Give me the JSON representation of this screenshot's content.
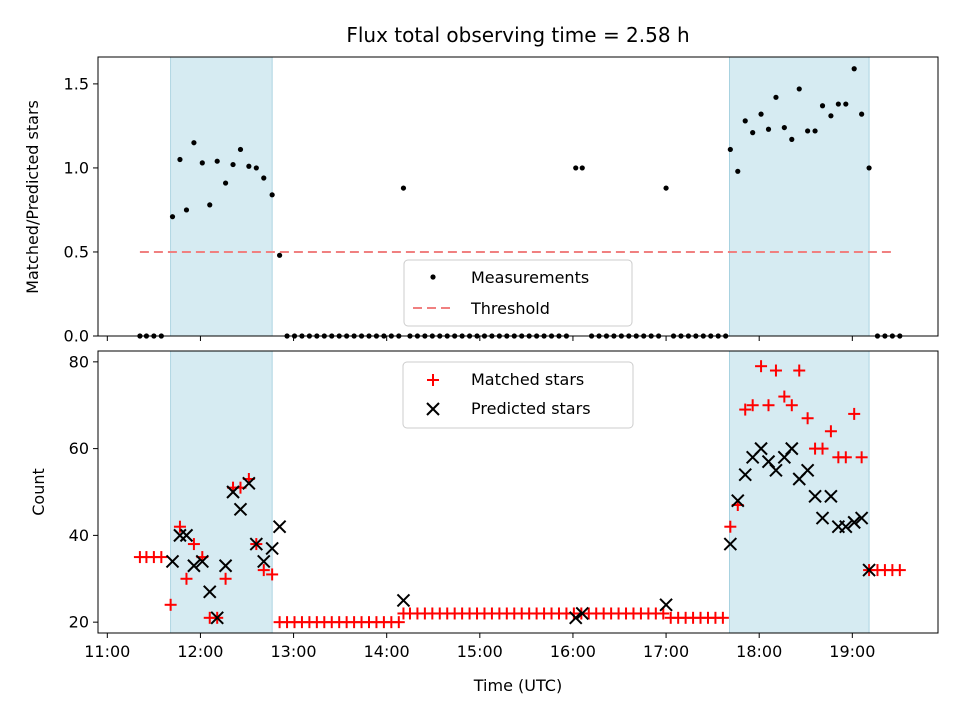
{
  "chart_data": [
    {
      "type": "scatter",
      "title": "Flux total observing time = 2.58 h",
      "ylabel": "Matched/Predicted stars",
      "xlabel": "",
      "ylim": [
        0,
        1.66
      ],
      "xlim": [
        10.9,
        19.92
      ],
      "yticks": [
        0.0,
        0.5,
        1.0,
        1.5
      ],
      "ytick_labels": [
        "0.0",
        "0.5",
        "1.0",
        "1.5"
      ],
      "shaded_intervals": [
        [
          11.68,
          12.77
        ],
        [
          17.68,
          19.18
        ]
      ],
      "threshold": {
        "value": 0.5,
        "x_range": [
          11.35,
          19.45
        ],
        "color": "#f08080"
      },
      "legend": {
        "position": "lower-center",
        "entries": [
          "Measurements",
          "Threshold"
        ]
      },
      "series": [
        {
          "name": "Measurements",
          "color": "#000000",
          "points": [
            [
              11.35,
              0
            ],
            [
              11.42,
              0
            ],
            [
              11.5,
              0
            ],
            [
              11.58,
              0
            ],
            [
              11.7,
              0.71
            ],
            [
              11.78,
              1.05
            ],
            [
              11.85,
              0.75
            ],
            [
              11.93,
              1.15
            ],
            [
              12.02,
              1.03
            ],
            [
              12.1,
              0.78
            ],
            [
              12.18,
              1.04
            ],
            [
              12.27,
              0.91
            ],
            [
              12.35,
              1.02
            ],
            [
              12.43,
              1.11
            ],
            [
              12.52,
              1.01
            ],
            [
              12.6,
              1.0
            ],
            [
              12.68,
              0.94
            ],
            [
              12.77,
              0.84
            ],
            [
              12.85,
              0.48
            ],
            [
              12.93,
              0
            ],
            [
              13.01,
              0
            ],
            [
              13.09,
              0
            ],
            [
              13.17,
              0
            ],
            [
              13.25,
              0
            ],
            [
              13.33,
              0
            ],
            [
              13.41,
              0
            ],
            [
              13.49,
              0
            ],
            [
              13.57,
              0
            ],
            [
              13.65,
              0
            ],
            [
              13.73,
              0
            ],
            [
              13.81,
              0
            ],
            [
              13.89,
              0
            ],
            [
              13.97,
              0
            ],
            [
              14.05,
              0
            ],
            [
              14.13,
              0
            ],
            [
              14.18,
              0.88
            ],
            [
              14.25,
              0
            ],
            [
              14.33,
              0
            ],
            [
              14.41,
              0
            ],
            [
              14.49,
              0
            ],
            [
              14.57,
              0
            ],
            [
              14.65,
              0
            ],
            [
              14.73,
              0
            ],
            [
              14.81,
              0
            ],
            [
              14.89,
              0
            ],
            [
              14.97,
              0
            ],
            [
              15.05,
              0
            ],
            [
              15.13,
              0
            ],
            [
              15.21,
              0
            ],
            [
              15.29,
              0
            ],
            [
              15.37,
              0
            ],
            [
              15.45,
              0
            ],
            [
              15.53,
              0
            ],
            [
              15.61,
              0
            ],
            [
              15.69,
              0
            ],
            [
              15.77,
              0
            ],
            [
              15.85,
              0
            ],
            [
              15.93,
              0
            ],
            [
              16.03,
              1.0
            ],
            [
              16.1,
              1.0
            ],
            [
              16.2,
              0
            ],
            [
              16.28,
              0
            ],
            [
              16.36,
              0
            ],
            [
              16.44,
              0
            ],
            [
              16.52,
              0
            ],
            [
              16.6,
              0
            ],
            [
              16.68,
              0
            ],
            [
              16.76,
              0
            ],
            [
              16.84,
              0
            ],
            [
              16.92,
              0
            ],
            [
              17.0,
              0.88
            ],
            [
              17.08,
              0
            ],
            [
              17.16,
              0
            ],
            [
              17.24,
              0
            ],
            [
              17.32,
              0
            ],
            [
              17.4,
              0
            ],
            [
              17.48,
              0
            ],
            [
              17.56,
              0
            ],
            [
              17.64,
              0
            ],
            [
              17.69,
              1.11
            ],
            [
              17.77,
              0.98
            ],
            [
              17.85,
              1.28
            ],
            [
              17.93,
              1.21
            ],
            [
              18.02,
              1.32
            ],
            [
              18.1,
              1.23
            ],
            [
              18.18,
              1.42
            ],
            [
              18.27,
              1.24
            ],
            [
              18.35,
              1.17
            ],
            [
              18.43,
              1.47
            ],
            [
              18.52,
              1.22
            ],
            [
              18.6,
              1.22
            ],
            [
              18.68,
              1.37
            ],
            [
              18.77,
              1.31
            ],
            [
              18.85,
              1.38
            ],
            [
              18.93,
              1.38
            ],
            [
              19.02,
              1.59
            ],
            [
              19.1,
              1.32
            ],
            [
              19.18,
              1.0
            ],
            [
              19.27,
              0
            ],
            [
              19.35,
              0
            ],
            [
              19.43,
              0
            ],
            [
              19.51,
              0
            ]
          ]
        }
      ]
    },
    {
      "type": "scatter",
      "title": "",
      "xlabel": "Time (UTC)",
      "ylabel": "Count",
      "ylim": [
        17.5,
        82.5
      ],
      "xlim": [
        10.9,
        19.92
      ],
      "yticks": [
        20,
        40,
        60,
        80
      ],
      "ytick_labels": [
        "20",
        "40",
        "60",
        "80"
      ],
      "xticks": [
        11,
        12,
        13,
        14,
        15,
        16,
        17,
        18,
        19
      ],
      "xtick_labels": [
        "11:00",
        "12:00",
        "13:00",
        "14:00",
        "15:00",
        "16:00",
        "17:00",
        "18:00",
        "19:00"
      ],
      "shaded_intervals": [
        [
          11.68,
          12.77
        ],
        [
          17.68,
          19.18
        ]
      ],
      "legend": {
        "position": "upper-center",
        "entries": [
          "Matched stars",
          "Predicted stars"
        ]
      },
      "series": [
        {
          "name": "Matched stars",
          "color": "#ff0000",
          "points": [
            [
              11.35,
              35
            ],
            [
              11.42,
              35
            ],
            [
              11.5,
              35
            ],
            [
              11.58,
              35
            ],
            [
              11.68,
              24
            ],
            [
              11.78,
              42
            ],
            [
              11.85,
              30
            ],
            [
              11.93,
              38
            ],
            [
              12.02,
              35
            ],
            [
              12.1,
              21
            ],
            [
              12.18,
              21
            ],
            [
              12.27,
              30
            ],
            [
              12.35,
              51
            ],
            [
              12.43,
              51
            ],
            [
              12.52,
              53
            ],
            [
              12.6,
              38
            ],
            [
              12.68,
              32
            ],
            [
              12.77,
              31
            ],
            [
              12.85,
              20
            ],
            [
              12.93,
              20
            ],
            [
              13.01,
              20
            ],
            [
              13.09,
              20
            ],
            [
              13.17,
              20
            ],
            [
              13.25,
              20
            ],
            [
              13.33,
              20
            ],
            [
              13.41,
              20
            ],
            [
              13.49,
              20
            ],
            [
              13.57,
              20
            ],
            [
              13.65,
              20
            ],
            [
              13.73,
              20
            ],
            [
              13.81,
              20
            ],
            [
              13.89,
              20
            ],
            [
              13.97,
              20
            ],
            [
              14.05,
              20
            ],
            [
              14.13,
              20
            ],
            [
              14.18,
              22
            ],
            [
              14.25,
              22
            ],
            [
              14.33,
              22
            ],
            [
              14.41,
              22
            ],
            [
              14.49,
              22
            ],
            [
              14.57,
              22
            ],
            [
              14.65,
              22
            ],
            [
              14.73,
              22
            ],
            [
              14.81,
              22
            ],
            [
              14.89,
              22
            ],
            [
              14.97,
              22
            ],
            [
              15.05,
              22
            ],
            [
              15.13,
              22
            ],
            [
              15.21,
              22
            ],
            [
              15.29,
              22
            ],
            [
              15.37,
              22
            ],
            [
              15.45,
              22
            ],
            [
              15.53,
              22
            ],
            [
              15.61,
              22
            ],
            [
              15.69,
              22
            ],
            [
              15.77,
              22
            ],
            [
              15.85,
              22
            ],
            [
              15.93,
              22
            ],
            [
              16.01,
              22
            ],
            [
              16.09,
              22
            ],
            [
              16.17,
              22
            ],
            [
              16.25,
              22
            ],
            [
              16.33,
              22
            ],
            [
              16.41,
              22
            ],
            [
              16.49,
              22
            ],
            [
              16.57,
              22
            ],
            [
              16.65,
              22
            ],
            [
              16.73,
              22
            ],
            [
              16.81,
              22
            ],
            [
              16.89,
              22
            ],
            [
              16.97,
              22
            ],
            [
              17.05,
              21
            ],
            [
              17.13,
              21
            ],
            [
              17.21,
              21
            ],
            [
              17.29,
              21
            ],
            [
              17.37,
              21
            ],
            [
              17.45,
              21
            ],
            [
              17.53,
              21
            ],
            [
              17.61,
              21
            ],
            [
              17.69,
              42
            ],
            [
              17.77,
              47
            ],
            [
              17.85,
              69
            ],
            [
              17.93,
              70
            ],
            [
              18.02,
              79
            ],
            [
              18.1,
              70
            ],
            [
              18.18,
              78
            ],
            [
              18.27,
              72
            ],
            [
              18.35,
              70
            ],
            [
              18.43,
              78
            ],
            [
              18.52,
              67
            ],
            [
              18.6,
              60
            ],
            [
              18.68,
              60
            ],
            [
              18.77,
              64
            ],
            [
              18.85,
              58
            ],
            [
              18.93,
              58
            ],
            [
              19.02,
              68
            ],
            [
              19.1,
              58
            ],
            [
              19.18,
              32
            ],
            [
              19.27,
              32
            ],
            [
              19.35,
              32
            ],
            [
              19.43,
              32
            ],
            [
              19.51,
              32
            ]
          ]
        },
        {
          "name": "Predicted stars",
          "color": "#000000",
          "points": [
            [
              11.7,
              34
            ],
            [
              11.78,
              40
            ],
            [
              11.85,
              40
            ],
            [
              11.93,
              33
            ],
            [
              12.02,
              34
            ],
            [
              12.1,
              27
            ],
            [
              12.18,
              21
            ],
            [
              12.27,
              33
            ],
            [
              12.35,
              50
            ],
            [
              12.43,
              46
            ],
            [
              12.52,
              52
            ],
            [
              12.6,
              38
            ],
            [
              12.68,
              34
            ],
            [
              12.77,
              37
            ],
            [
              12.85,
              42
            ],
            [
              14.18,
              25
            ],
            [
              16.03,
              21
            ],
            [
              16.1,
              22
            ],
            [
              17.0,
              24
            ],
            [
              17.69,
              38
            ],
            [
              17.77,
              48
            ],
            [
              17.85,
              54
            ],
            [
              17.93,
              58
            ],
            [
              18.02,
              60
            ],
            [
              18.1,
              57
            ],
            [
              18.18,
              55
            ],
            [
              18.27,
              58
            ],
            [
              18.35,
              60
            ],
            [
              18.43,
              53
            ],
            [
              18.52,
              55
            ],
            [
              18.6,
              49
            ],
            [
              18.68,
              44
            ],
            [
              18.77,
              49
            ],
            [
              18.85,
              42
            ],
            [
              18.93,
              42
            ],
            [
              19.02,
              43
            ],
            [
              19.1,
              44
            ],
            [
              19.18,
              32
            ]
          ]
        }
      ]
    }
  ]
}
